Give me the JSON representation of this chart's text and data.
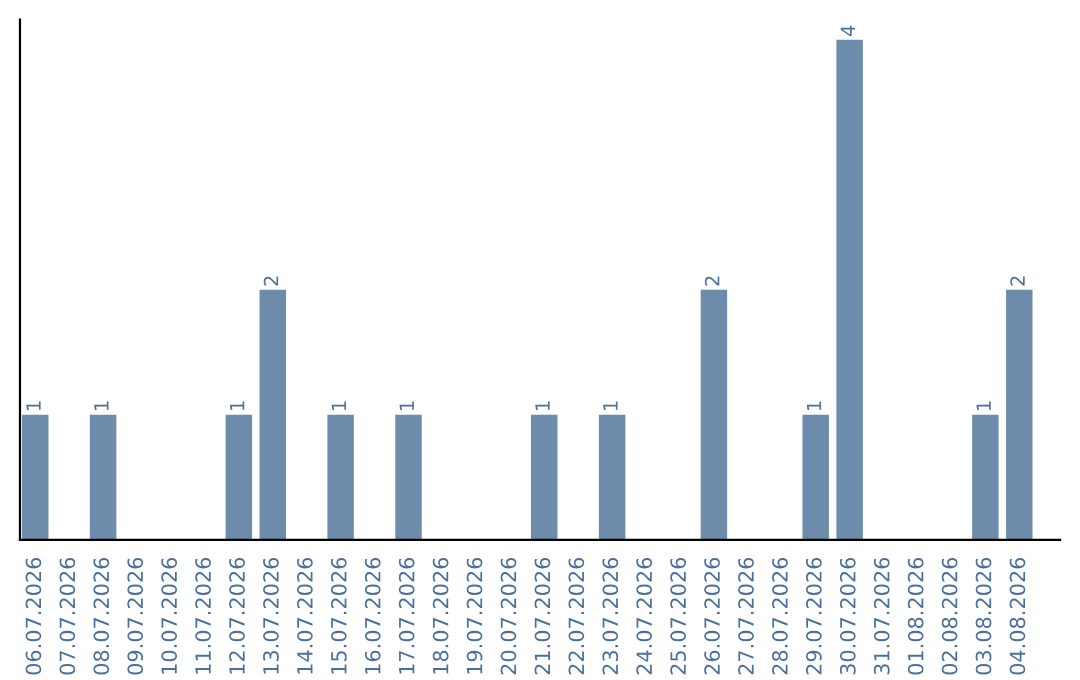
{
  "chart_data": {
    "type": "bar",
    "categories": [
      "06.07.2026",
      "07.07.2026",
      "08.07.2026",
      "09.07.2026",
      "10.07.2026",
      "11.07.2026",
      "12.07.2026",
      "13.07.2026",
      "14.07.2026",
      "15.07.2026",
      "16.07.2026",
      "17.07.2026",
      "18.07.2026",
      "19.07.2026",
      "20.07.2026",
      "21.07.2026",
      "22.07.2026",
      "23.07.2026",
      "24.07.2026",
      "25.07.2026",
      "26.07.2026",
      "27.07.2026",
      "28.07.2026",
      "29.07.2026",
      "30.07.2026",
      "31.07.2026",
      "01.08.2026",
      "02.08.2026",
      "03.08.2026",
      "04.08.2026"
    ],
    "values": [
      1,
      0,
      1,
      0,
      0,
      0,
      1,
      2,
      0,
      1,
      0,
      1,
      0,
      0,
      0,
      1,
      0,
      1,
      0,
      0,
      2,
      0,
      0,
      1,
      4,
      0,
      0,
      0,
      1,
      2
    ],
    "value_labels": [
      "1",
      null,
      "1",
      null,
      null,
      null,
      "1",
      "2",
      null,
      "1",
      null,
      "1",
      null,
      null,
      null,
      "1",
      null,
      "1",
      null,
      null,
      "2",
      null,
      null,
      "1",
      "4",
      null,
      null,
      null,
      "1",
      "2"
    ],
    "color": "#6d8cab",
    "grid": false,
    "legend": false
  }
}
